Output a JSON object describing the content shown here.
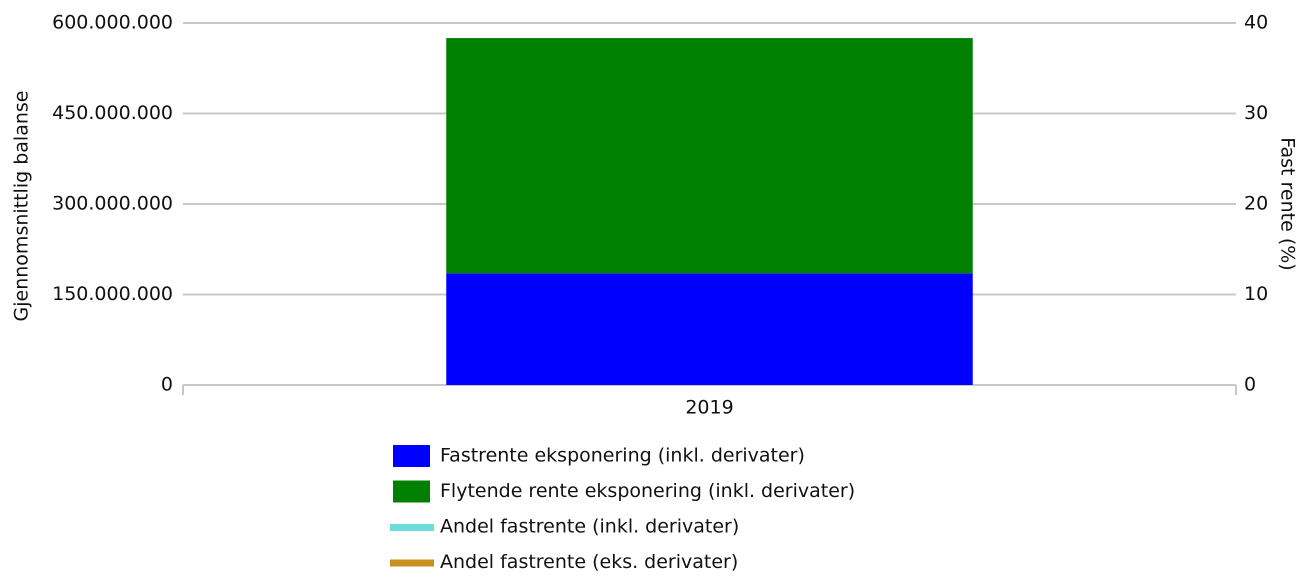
{
  "chart_data": {
    "type": "bar",
    "categories": [
      "2019"
    ],
    "series": [
      {
        "name": "Fastrente eksponering (inkl. derivater)",
        "color": "#0000ff",
        "type": "bar",
        "values": [
          185000000
        ]
      },
      {
        "name": "Flytende rente eksponering (inkl. derivater)",
        "color": "#008000",
        "type": "bar",
        "values": [
          390000000
        ]
      },
      {
        "name": "Andel fastrente (inkl. derivater)",
        "color": "#6fdcdc",
        "type": "line",
        "axis": "y2",
        "values": [
          null
        ]
      },
      {
        "name": "Andel fastrente (eks. derivater)",
        "color": "#c8901e",
        "type": "line",
        "axis": "y2",
        "values": [
          null
        ]
      }
    ],
    "stacked": true,
    "ylabel": "Gjennomsnittlig balanse",
    "y2label": "Fast rente (%)",
    "ylim": [
      0,
      600000000
    ],
    "yticks": [
      0,
      {
        "value": 150000000,
        "label": "150.000.000"
      },
      {
        "value": 300000000,
        "label": "300.000.000"
      },
      {
        "value": 450000000,
        "label": "450.000.000"
      },
      {
        "value": 600000000,
        "label": "600.000.000"
      }
    ],
    "y2lim": [
      0,
      40
    ],
    "y2ticks": [
      0,
      10,
      20,
      30,
      40
    ],
    "grid": true,
    "legend": "bottom"
  }
}
